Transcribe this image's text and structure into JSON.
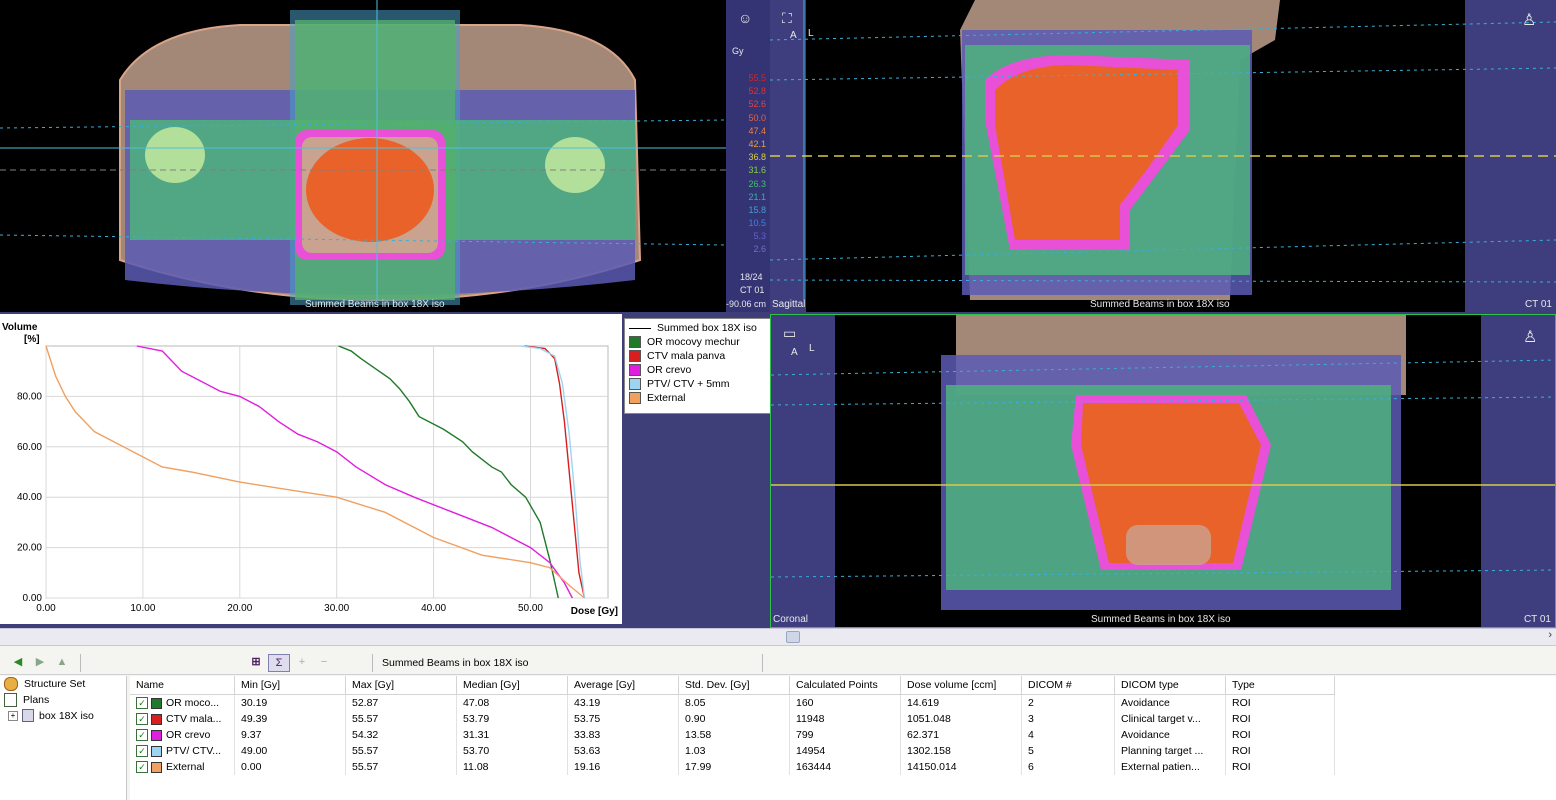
{
  "viewers": {
    "transverse": {
      "beam_label": "Summed Beams in box 18X iso",
      "slice": "18/24",
      "series": "CT 01",
      "position": "-90.06 cm",
      "dose_unit": "Gy",
      "dose_scale": [
        "55.5",
        "52.8",
        "52.6",
        "50.0",
        "47.4",
        "42.1",
        "36.8",
        "31.6",
        "26.3",
        "21.1",
        "15.8",
        "10.5",
        "5.3",
        "2.6"
      ]
    },
    "sagittal": {
      "name": "Sagittal",
      "beam_label": "Summed Beams in box 18X iso",
      "series": "CT 01",
      "orient_a": "A",
      "orient_l": "L"
    },
    "coronal": {
      "name": "Coronal",
      "beam_label": "Summed Beams in box 18X iso",
      "series": "CT 01",
      "orient_a": "A",
      "orient_l": "L"
    }
  },
  "dvh": {
    "legend_title": "Summed box 18X iso",
    "legend": [
      {
        "label": "OR mocovy mechur",
        "color": "#1f7a2a"
      },
      {
        "label": "CTV mala panva",
        "color": "#d81e1e"
      },
      {
        "label": "OR crevo",
        "color": "#e01ee0"
      },
      {
        "label": "PTV/ CTV + 5mm",
        "color": "#9fd4f0"
      },
      {
        "label": "External",
        "color": "#f0a060"
      }
    ]
  },
  "chart_data": {
    "type": "line",
    "ylabel": "Volume [%]",
    "xlabel": "Dose [Gy]",
    "xlim": [
      0,
      58
    ],
    "ylim": [
      0,
      100
    ],
    "xticks": [
      "0.00",
      "10.00",
      "20.00",
      "30.00",
      "40.00",
      "50.00"
    ],
    "yticks": [
      "0.00",
      "20.00",
      "40.00",
      "60.00",
      "80.00"
    ],
    "grid": true,
    "series": [
      {
        "name": "OR mocovy mechur",
        "color": "#1f7a2a",
        "x": [
          30.19,
          31.5,
          32.5,
          34,
          35.5,
          36.5,
          37.5,
          38.5,
          41,
          43,
          44,
          46,
          47,
          48,
          49.5,
          51,
          52,
          52.87
        ],
        "y": [
          100,
          98,
          95,
          91,
          87,
          83,
          78,
          72,
          67,
          62,
          58,
          52,
          50,
          45,
          40,
          30,
          15,
          0
        ]
      },
      {
        "name": "CTV mala panva",
        "color": "#d81e1e",
        "x": [
          49.39,
          51.5,
          52.5,
          53,
          53.5,
          54,
          54.5,
          55,
          55.57
        ],
        "y": [
          100,
          99,
          95,
          85,
          70,
          50,
          30,
          10,
          0
        ]
      },
      {
        "name": "OR crevo",
        "color": "#e01ee0",
        "x": [
          9.37,
          12,
          14,
          16,
          18,
          20,
          22,
          24,
          26,
          28,
          30,
          32,
          35,
          38,
          42,
          46,
          50,
          52,
          53.5,
          54.32
        ],
        "y": [
          100,
          98,
          90,
          86,
          82,
          80,
          76,
          70,
          65,
          62,
          58,
          52,
          45,
          40,
          34,
          28,
          20,
          14,
          6,
          0
        ]
      },
      {
        "name": "PTV/ CTV + 5mm",
        "color": "#9fd4f0",
        "x": [
          49,
          51,
          52.5,
          53.3,
          54,
          54.6,
          55.1,
          55.57
        ],
        "y": [
          100,
          99,
          96,
          85,
          65,
          40,
          15,
          0
        ]
      },
      {
        "name": "External",
        "color": "#f0a060",
        "x": [
          0,
          1,
          2,
          3,
          4,
          5,
          7,
          9,
          12,
          15,
          20,
          25,
          30,
          35,
          40,
          45,
          50,
          52,
          54,
          55.57
        ],
        "y": [
          100,
          88,
          80,
          74,
          70,
          66,
          62,
          58,
          52,
          50,
          46,
          43,
          40,
          34,
          24,
          17,
          14,
          12,
          5,
          0
        ]
      }
    ]
  },
  "bottom": {
    "toolbar_title": "Summed Beams in box 18X iso",
    "toolbar_icons": [
      "back-arrow-icon",
      "forward-arrow-icon",
      "up-arrow-icon",
      "dvh-table-icon",
      "sum-dose-icon",
      "add-icon",
      "remove-icon"
    ],
    "tree": [
      {
        "label": "Structure Set",
        "icon": "structure-set-icon"
      },
      {
        "label": "Plans",
        "icon": "plans-icon"
      },
      {
        "label": "box 18X iso",
        "icon": "plan-icon"
      }
    ],
    "columns": [
      "Name",
      "Min [Gy]",
      "Max [Gy]",
      "Median [Gy]",
      "Average [Gy]",
      "Std. Dev. [Gy]",
      "Calculated Points",
      "Dose volume [ccm]",
      "DICOM #",
      "DICOM type",
      "Type"
    ],
    "rows": [
      {
        "color": "#1f7a2a",
        "cells": [
          "OR moco...",
          "30.19",
          "52.87",
          "47.08",
          "43.19",
          "8.05",
          "160",
          "14.619",
          "2",
          "Avoidance",
          "ROI"
        ]
      },
      {
        "color": "#d81e1e",
        "cells": [
          "CTV mala...",
          "49.39",
          "55.57",
          "53.79",
          "53.75",
          "0.90",
          "11948",
          "1051.048",
          "3",
          "Clinical target v...",
          "ROI"
        ]
      },
      {
        "color": "#e01ee0",
        "cells": [
          "OR crevo",
          "9.37",
          "54.32",
          "31.31",
          "33.83",
          "13.58",
          "799",
          "62.371",
          "4",
          "Avoidance",
          "ROI"
        ]
      },
      {
        "color": "#9fd4f0",
        "cells": [
          "PTV/ CTV...",
          "49.00",
          "55.57",
          "53.70",
          "53.63",
          "1.03",
          "14954",
          "1302.158",
          "5",
          "Planning target ...",
          "ROI"
        ]
      },
      {
        "color": "#f0a060",
        "cells": [
          "External",
          "0.00",
          "55.57",
          "11.08",
          "19.16",
          "17.99",
          "163444",
          "14150.014",
          "6",
          "External patien...",
          "ROI"
        ]
      }
    ]
  }
}
